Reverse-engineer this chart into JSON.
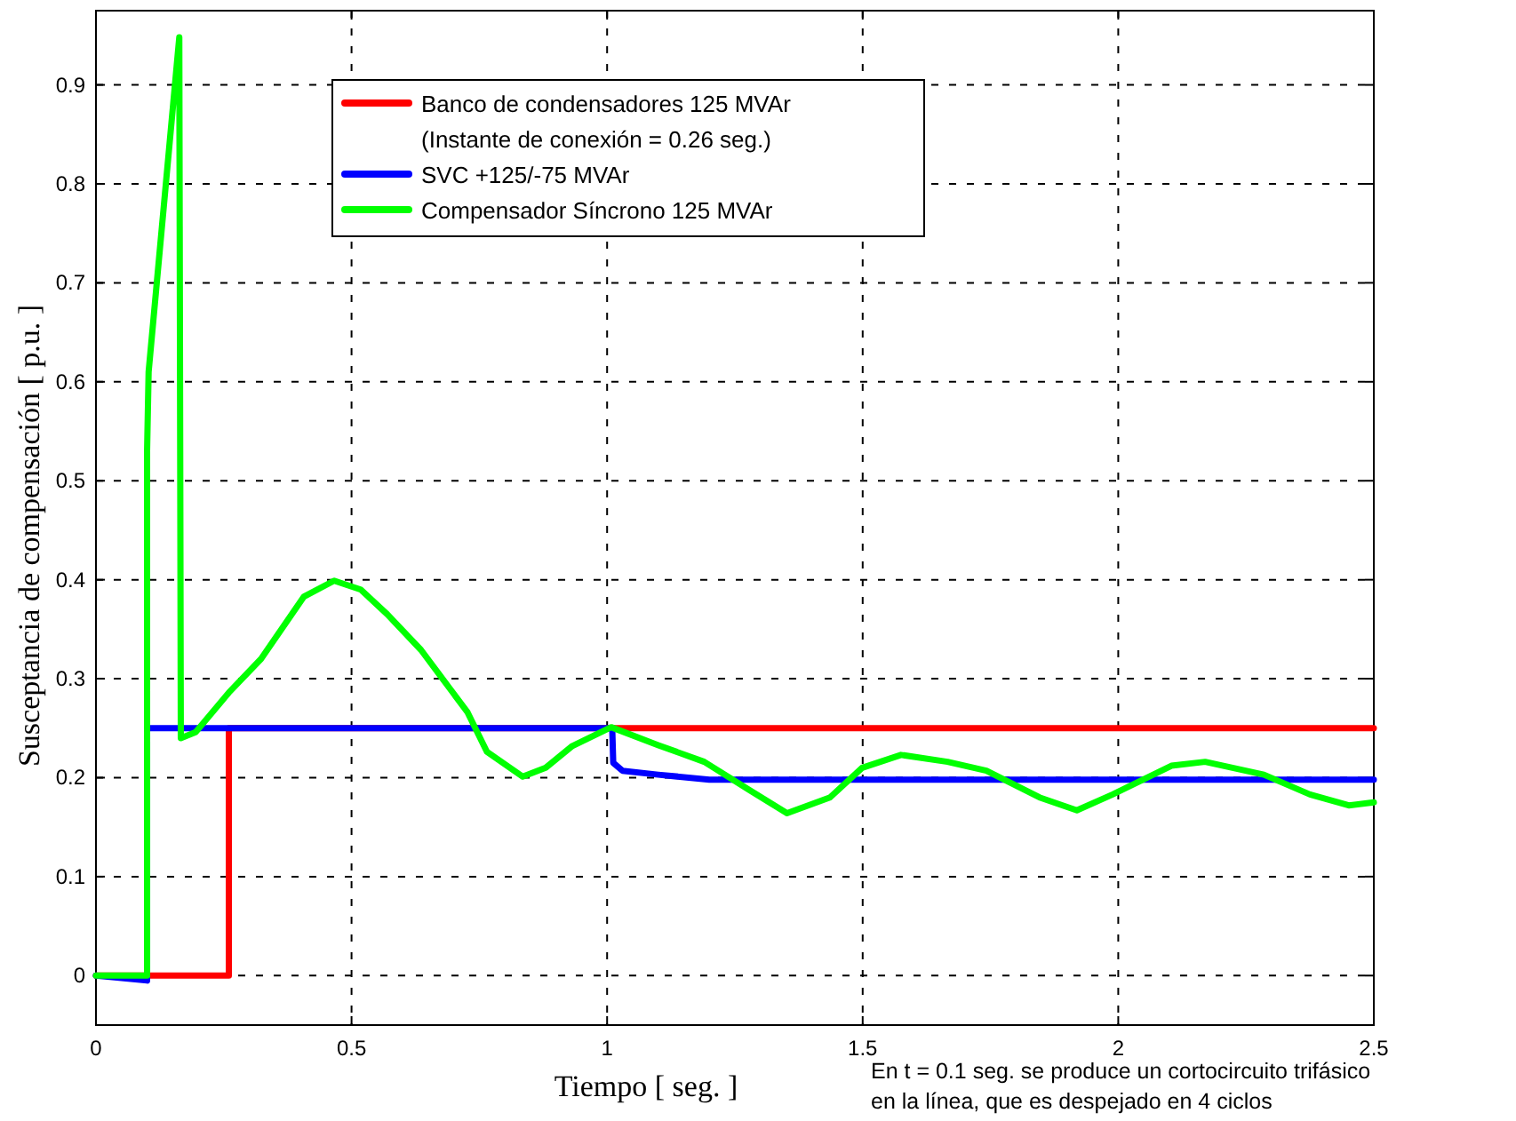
{
  "chart_data": {
    "type": "line",
    "xlabel": "Tiempo [ seg. ]",
    "ylabel": "Susceptancia de compensación [ p.u. ]",
    "xlim": [
      0,
      2.5
    ],
    "ylim": [
      -0.05,
      0.975
    ],
    "xticks": [
      0,
      0.5,
      1,
      1.5,
      2,
      2.5
    ],
    "yticks": [
      0,
      0.1,
      0.2,
      0.3,
      0.4,
      0.5,
      0.6,
      0.7,
      0.8,
      0.9
    ],
    "grid": true,
    "legend": "top left",
    "line_style": "solid",
    "marker": "none",
    "annotations": [
      "En t = 0.1 seg. se produce un cortocircuito trifásico\nen la línea, que es despejado en 4 ciclos"
    ],
    "series": [
      {
        "name": "Banco de condensadores 125 MVAr\n(Instante de conexión = 0.26 seg.)",
        "color": "#ff0000",
        "x": [
          0,
          0.26,
          0.26,
          2.5
        ],
        "values": [
          0,
          0,
          0.25,
          0.25
        ]
      },
      {
        "name": "SVC +125/-75 MVAr",
        "color": "#0000ff",
        "x": [
          0,
          0.1,
          0.1,
          1.01,
          1.012,
          1.03,
          1.1,
          1.2,
          2.5
        ],
        "values": [
          0,
          -0.005,
          0.25,
          0.25,
          0.215,
          0.207,
          0.203,
          0.198,
          0.198
        ]
      },
      {
        "name": "Compensador Síncrono 125 MVAr",
        "color": "#00ff00",
        "x": [
          0,
          0.1,
          0.1,
          0.103,
          0.163,
          0.166,
          0.195,
          0.26,
          0.323,
          0.407,
          0.466,
          0.518,
          0.57,
          0.636,
          0.727,
          0.765,
          0.835,
          0.88,
          0.932,
          1.008,
          1.099,
          1.19,
          1.28,
          1.352,
          1.436,
          1.499,
          1.575,
          1.666,
          1.742,
          1.846,
          1.919,
          1.989,
          2.104,
          2.17,
          2.285,
          2.375,
          2.451,
          2.5
        ],
        "values": [
          0,
          0,
          0.53,
          0.61,
          0.948,
          0.24,
          0.246,
          0.286,
          0.32,
          0.383,
          0.399,
          0.39,
          0.365,
          0.329,
          0.266,
          0.226,
          0.201,
          0.21,
          0.232,
          0.251,
          0.233,
          0.216,
          0.187,
          0.164,
          0.18,
          0.21,
          0.223,
          0.216,
          0.207,
          0.18,
          0.167,
          0.183,
          0.212,
          0.216,
          0.203,
          0.183,
          0.172,
          0.175
        ]
      }
    ]
  }
}
